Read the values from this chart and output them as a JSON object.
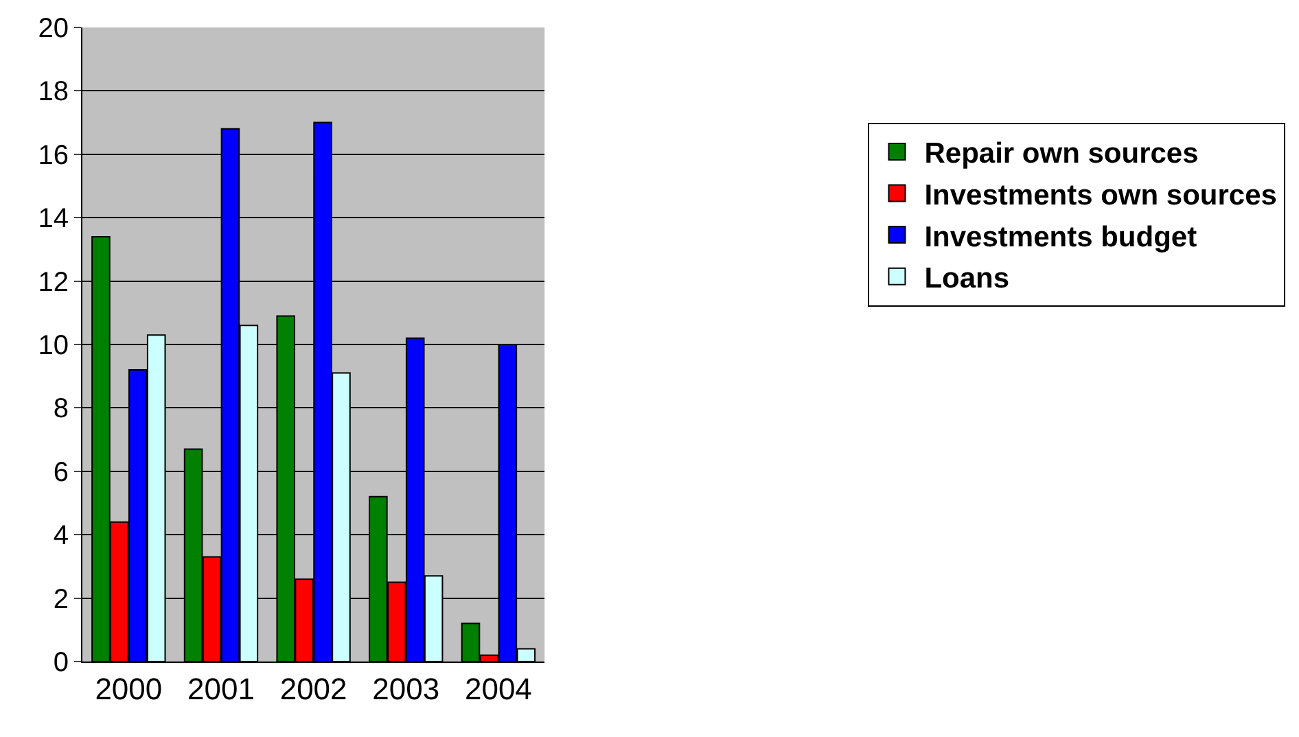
{
  "chart_data": {
    "type": "bar",
    "categories": [
      "2000",
      "2001",
      "2002",
      "2003",
      "2004"
    ],
    "series": [
      {
        "name": "Repair own sources",
        "color": "#008000",
        "values": [
          13.4,
          6.7,
          10.9,
          5.2,
          1.2
        ]
      },
      {
        "name": "Investments own sources",
        "color": "#ff0000",
        "values": [
          4.4,
          3.3,
          2.6,
          2.5,
          0.2
        ]
      },
      {
        "name": "Investments budget",
        "color": "#0000ff",
        "values": [
          9.2,
          16.8,
          17.0,
          10.2,
          10.0
        ]
      },
      {
        "name": "Loans",
        "color": "#ccffff",
        "values": [
          10.3,
          10.6,
          9.1,
          2.7,
          0.4
        ]
      }
    ],
    "ylim": [
      0,
      20
    ],
    "yticks": [
      0,
      2,
      4,
      6,
      8,
      10,
      12,
      14,
      16,
      18,
      20
    ],
    "grid": "y",
    "legend": "right"
  }
}
